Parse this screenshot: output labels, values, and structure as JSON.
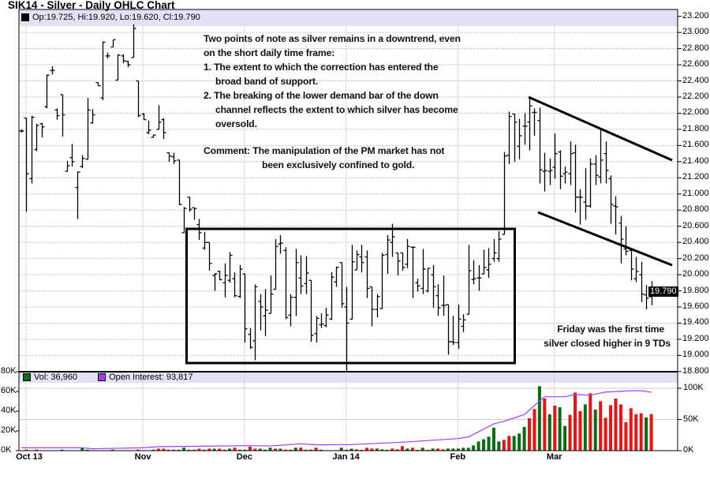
{
  "title": "SIK14 - Silver - Daily OHLC Chart",
  "price_legend": "Op:19.725, Hi:19.920, Lo:19.620, Cl:19.790",
  "last_price_tag": "19.790",
  "volume_legend": {
    "vol": "Vol: 36,960",
    "oi": "Open Interest: 93,817"
  },
  "annotations": {
    "main": [
      "Two points of note as silver remains in a downtrend, even",
      "on the short daily time frame:",
      "1. The extent to which the correction has entered the",
      "broad band of support.",
      "2. The breaking of the lower demand bar of the down",
      "channel reflects the extent to which silver has become",
      "oversold.",
      "Comment:  The manipulation of the PM market has not",
      "been exclusively confined to gold."
    ],
    "friday": [
      "Friday was the first time",
      "silver closed higher in 9 TDs"
    ]
  },
  "colors": {
    "up": "#0b6b10",
    "down": "#ee1111",
    "open_interest": "#a33cff",
    "price_bar": "#000000"
  },
  "chart_data": [
    {
      "type": "ohlc",
      "ylim": [
        18.8,
        23.2
      ],
      "y_ticks": [
        "18.800",
        "19.000",
        "19.200",
        "19.400",
        "19.600",
        "19.800",
        "20.000",
        "20.200",
        "20.400",
        "20.600",
        "20.800",
        "21.000",
        "21.200",
        "21.400",
        "21.600",
        "21.800",
        "22.000",
        "22.200",
        "22.400",
        "22.600",
        "22.800",
        "23.000",
        "23.200"
      ],
      "x_ticks": [
        {
          "label": "Oct 13",
          "bar": 1
        },
        {
          "label": "Nov",
          "bar": 24
        },
        {
          "label": "Dec",
          "bar": 44
        },
        {
          "label": "Jan 14",
          "bar": 64
        },
        {
          "label": "Feb",
          "bar": 86
        },
        {
          "label": "Mar",
          "bar": 105
        }
      ],
      "grid": true,
      "ohlc": [
        [
          21.78,
          21.8,
          21.76,
          21.78
        ],
        [
          21.94,
          21.94,
          20.78,
          21.25
        ],
        [
          21.19,
          21.97,
          21.13,
          21.95
        ],
        [
          21.55,
          21.87,
          21.53,
          21.85
        ],
        [
          21.87,
          21.88,
          21.7,
          21.83
        ],
        [
          22.08,
          22.48,
          22.06,
          22.47
        ],
        [
          22.53,
          22.58,
          22.48,
          22.53
        ],
        [
          22.04,
          22.06,
          21.92,
          21.97
        ],
        [
          22.23,
          22.23,
          21.71,
          21.98
        ],
        [
          21.28,
          21.41,
          21.28,
          21.35
        ],
        [
          21.45,
          21.62,
          21.34,
          21.4
        ],
        [
          21.08,
          21.28,
          20.69,
          21.27
        ],
        [
          21.34,
          21.48,
          21.32,
          21.44
        ],
        [
          21.43,
          22.19,
          21.43,
          22.04
        ],
        [
          21.88,
          22.05,
          21.87,
          21.98
        ],
        [
          22.38,
          22.38,
          22.34,
          22.34
        ],
        [
          22.19,
          22.89,
          22.16,
          22.88
        ],
        [
          22.71,
          22.75,
          22.68,
          22.71
        ],
        [
          22.82,
          22.91,
          22.82,
          22.91
        ],
        [
          22.41,
          22.73,
          22.41,
          22.72
        ],
        [
          22.71,
          22.73,
          22.62,
          22.65
        ],
        [
          22.64,
          22.65,
          22.57,
          22.6
        ],
        [
          22.69,
          23.1,
          22.69,
          23.05
        ],
        [
          22.4,
          22.4,
          21.95,
          21.97
        ],
        [
          21.99,
          22.0,
          21.92,
          21.92
        ],
        [
          21.76,
          21.91,
          21.74,
          21.79
        ],
        [
          21.7,
          21.73,
          21.7,
          21.73
        ],
        [
          21.8,
          22.1,
          21.8,
          21.89
        ],
        [
          21.92,
          21.94,
          21.68,
          21.76
        ],
        [
          21.51,
          21.51,
          21.4,
          21.47
        ],
        [
          21.46,
          21.51,
          21.37,
          21.41
        ],
        [
          21.42,
          21.42,
          20.86,
          20.87
        ],
        [
          20.52,
          20.84,
          20.52,
          20.82
        ],
        [
          20.96,
          20.96,
          20.78,
          20.81
        ],
        [
          20.83,
          20.83,
          20.68,
          20.82
        ],
        [
          20.62,
          20.69,
          20.43,
          20.52
        ],
        [
          20.33,
          20.53,
          20.31,
          20.4
        ],
        [
          20.4,
          20.4,
          20.05,
          20.14
        ],
        [
          19.99,
          20.02,
          19.8,
          20.01
        ],
        [
          20.04,
          20.05,
          19.93,
          19.94
        ],
        [
          19.9,
          20.14,
          19.72,
          19.99
        ],
        [
          19.93,
          20.28,
          19.9,
          20.24
        ],
        [
          19.95,
          20.03,
          19.72,
          19.74
        ],
        [
          19.73,
          20.12,
          19.71,
          20.07
        ],
        [
          20.01,
          20.01,
          19.16,
          19.33
        ],
        [
          19.26,
          19.34,
          19.08,
          19.1
        ],
        [
          19.18,
          19.88,
          18.94,
          19.85
        ],
        [
          19.67,
          19.76,
          19.31,
          19.6
        ],
        [
          19.49,
          19.82,
          19.24,
          19.56
        ],
        [
          19.52,
          19.99,
          19.52,
          19.76
        ],
        [
          19.82,
          20.44,
          19.82,
          20.35
        ],
        [
          20.38,
          20.49,
          20.26,
          20.39
        ],
        [
          20.3,
          20.34,
          19.45,
          19.47
        ],
        [
          19.5,
          19.76,
          19.36,
          19.72
        ],
        [
          19.72,
          20.32,
          19.49,
          20.15
        ],
        [
          19.96,
          20.24,
          19.76,
          19.86
        ],
        [
          19.89,
          20.23,
          19.76,
          20.02
        ],
        [
          19.93,
          19.93,
          19.17,
          19.25
        ],
        [
          19.27,
          19.49,
          19.16,
          19.46
        ],
        [
          19.38,
          19.52,
          19.34,
          19.39
        ],
        [
          19.37,
          19.59,
          19.35,
          19.5
        ],
        [
          19.45,
          20.03,
          19.44,
          19.97
        ],
        [
          19.91,
          20.1,
          19.85,
          20.09
        ],
        [
          20.15,
          20.15,
          19.59,
          19.64
        ],
        [
          19.6,
          19.85,
          18.81,
          19.4
        ],
        [
          19.45,
          20.37,
          19.45,
          20.16
        ],
        [
          20.06,
          20.3,
          20.06,
          20.25
        ],
        [
          20.22,
          20.37,
          20.03,
          20.15
        ],
        [
          20.22,
          20.3,
          19.71,
          19.83
        ],
        [
          19.85,
          19.85,
          19.36,
          19.57
        ],
        [
          19.57,
          19.76,
          19.47,
          19.73
        ],
        [
          19.58,
          20.27,
          19.58,
          20.24
        ],
        [
          20.25,
          20.49,
          20.01,
          20.43
        ],
        [
          20.4,
          20.63,
          20.22,
          20.47
        ],
        [
          20.27,
          20.27,
          19.99,
          20.17
        ],
        [
          20.27,
          20.27,
          20.05,
          20.09
        ],
        [
          20.13,
          20.44,
          20.08,
          20.35
        ],
        [
          20.34,
          20.35,
          19.71,
          20.34
        ],
        [
          19.9,
          19.95,
          19.79,
          19.86
        ],
        [
          19.83,
          20.32,
          19.76,
          20.07
        ],
        [
          19.8,
          20.08,
          19.78,
          20.08
        ],
        [
          20.0,
          20.12,
          19.59,
          19.85
        ],
        [
          19.74,
          19.88,
          19.49,
          19.59
        ],
        [
          19.62,
          19.99,
          19.49,
          19.62
        ],
        [
          19.63,
          19.63,
          19.01,
          19.17
        ],
        [
          19.17,
          19.49,
          19.13,
          19.16
        ],
        [
          19.16,
          19.63,
          19.08,
          19.45
        ],
        [
          19.36,
          19.51,
          19.29,
          19.44
        ],
        [
          19.51,
          20.37,
          19.51,
          20.05
        ],
        [
          19.94,
          20.18,
          19.88,
          19.95
        ],
        [
          19.96,
          20.12,
          19.8,
          19.96
        ],
        [
          20.01,
          20.31,
          20.01,
          20.09
        ],
        [
          20.06,
          20.33,
          19.96,
          20.13
        ],
        [
          20.2,
          20.44,
          20.16,
          20.27
        ],
        [
          20.2,
          20.54,
          20.16,
          20.44
        ],
        [
          20.5,
          21.52,
          20.5,
          21.47
        ],
        [
          21.48,
          22.02,
          21.37,
          21.96
        ],
        [
          21.99,
          21.99,
          21.4,
          21.89
        ],
        [
          21.59,
          21.93,
          21.43,
          21.72
        ],
        [
          21.84,
          22.0,
          21.61,
          21.84
        ],
        [
          21.89,
          22.2,
          21.54,
          22.09
        ],
        [
          22.01,
          22.06,
          21.72,
          22.01
        ],
        [
          21.91,
          22.07,
          21.13,
          21.3
        ],
        [
          21.28,
          21.51,
          21.03,
          21.29
        ],
        [
          21.28,
          21.44,
          21.11,
          21.29
        ],
        [
          21.33,
          21.75,
          21.19,
          21.5
        ],
        [
          21.52,
          21.54,
          21.06,
          21.22
        ],
        [
          21.25,
          21.34,
          21.13,
          21.27
        ],
        [
          21.25,
          21.65,
          21.11,
          21.5
        ],
        [
          21.51,
          21.61,
          20.77,
          20.96
        ],
        [
          20.96,
          21.06,
          20.62,
          20.96
        ],
        [
          20.9,
          21.32,
          20.68,
          20.85
        ],
        [
          20.85,
          21.44,
          20.83,
          21.37
        ],
        [
          21.37,
          21.48,
          21.11,
          21.23
        ],
        [
          21.21,
          21.8,
          21.13,
          21.42
        ],
        [
          21.5,
          21.65,
          21.13,
          21.29
        ],
        [
          21.19,
          21.23,
          20.63,
          20.87
        ],
        [
          20.85,
          20.97,
          20.5,
          20.84
        ],
        [
          20.64,
          20.73,
          20.14,
          20.44
        ],
        [
          20.32,
          20.6,
          20.24,
          20.29
        ],
        [
          20.3,
          20.3,
          19.93,
          20.07
        ],
        [
          19.95,
          20.22,
          19.91,
          20.04
        ],
        [
          20.0,
          20.16,
          19.66,
          19.76
        ],
        [
          19.75,
          19.87,
          19.57,
          19.71
        ],
        [
          19.725,
          19.92,
          19.62,
          19.79
        ]
      ]
    },
    {
      "type": "bar",
      "volume_ylim_k": [
        0,
        80
      ],
      "volume_ticks": [
        "0K",
        "20K",
        "40K",
        "60K",
        "80K"
      ],
      "open_interest_ylim_k": [
        0,
        100
      ],
      "open_interest_ticks": [
        "0K",
        "50K",
        "100K"
      ],
      "volume_k": [
        0,
        1,
        0,
        1,
        0,
        0,
        0,
        0,
        1,
        0,
        0,
        0,
        3,
        1,
        0,
        0,
        0,
        0,
        1,
        0,
        0,
        0,
        0,
        1,
        0,
        0,
        1,
        2,
        2,
        1,
        1,
        1,
        3,
        1,
        1,
        2,
        1,
        2,
        2,
        2,
        1,
        2,
        3,
        1,
        1,
        4,
        2,
        2,
        1,
        3,
        2,
        2,
        1,
        1,
        3,
        3,
        1,
        1,
        3,
        1,
        0,
        0,
        0,
        3,
        1,
        2,
        1.3,
        0.8,
        2.9,
        2.1,
        2.1,
        1.3,
        0.8,
        2.1,
        1.3,
        4.5,
        2.1,
        2.9,
        0.8,
        2.9,
        0.8,
        2.1,
        2.1,
        1.3,
        2.1,
        2.1,
        2.1,
        2.9,
        2.9,
        5.3,
        9.3,
        11.5,
        14.1,
        23.2,
        9.3,
        10.9,
        14.9,
        14.9,
        17.3,
        24,
        32.8,
        42.1,
        65.3,
        52.8,
        36.8,
        45.6,
        44,
        25,
        36.3,
        58.9,
        40,
        46.9,
        58.1,
        41.6,
        50.1,
        33.3,
        46.1,
        52.8,
        46.9,
        28.8,
        43,
        37,
        37.9,
        33.6,
        36.96
      ],
      "volume_color": "rrrrrrrrgrrrggrrrrgrrrrrrrgrrrrrggrrrrgrrgrrgrrgggrgrggrrgrrrrrgrgrrrrgggrrrgrrgrgrrgggggggggggrrgggrrgrgrggrrrgrgrrrrrrrrrg",
      "open_interest_k": [
        [
          1,
          4.6
        ],
        [
          13,
          4.6
        ],
        [
          15,
          3.0
        ],
        [
          25,
          4.6
        ],
        [
          28,
          6.3
        ],
        [
          46,
          8
        ],
        [
          50,
          7.5
        ],
        [
          56,
          11
        ],
        [
          59,
          9.3
        ],
        [
          66,
          9.7
        ],
        [
          77,
          14
        ],
        [
          87,
          19.4
        ],
        [
          89,
          22
        ],
        [
          94,
          43
        ],
        [
          96,
          47
        ],
        [
          100,
          58
        ],
        [
          104,
          86.5
        ],
        [
          108,
          86.5
        ],
        [
          110,
          90
        ],
        [
          113,
          89
        ],
        [
          116,
          94
        ],
        [
          121,
          96
        ],
        [
          123,
          96
        ],
        [
          125,
          93.8
        ]
      ]
    }
  ]
}
